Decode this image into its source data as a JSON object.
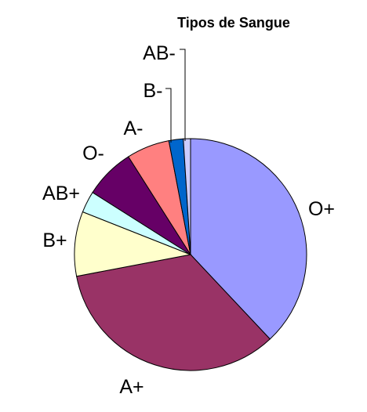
{
  "chart_data": {
    "type": "pie",
    "title": "Tipos de Sangue",
    "start_angle_deg": 0,
    "direction": "clockwise",
    "slices": [
      {
        "label": "O+",
        "value": 38.0,
        "color": "#9999ff"
      },
      {
        "label": "A+",
        "value": 34.0,
        "color": "#993366"
      },
      {
        "label": "B+",
        "value": 9.0,
        "color": "#ffffcc"
      },
      {
        "label": "AB+",
        "value": 3.0,
        "color": "#ccffff"
      },
      {
        "label": "O-",
        "value": 7.0,
        "color": "#660066"
      },
      {
        "label": "A-",
        "value": 6.0,
        "color": "#ff8080"
      },
      {
        "label": "B-",
        "value": 2.0,
        "color": "#0066cc"
      },
      {
        "label": "AB-",
        "value": 1.0,
        "color": "#ccccff"
      }
    ],
    "legend": "none",
    "data_labels": "outside"
  }
}
